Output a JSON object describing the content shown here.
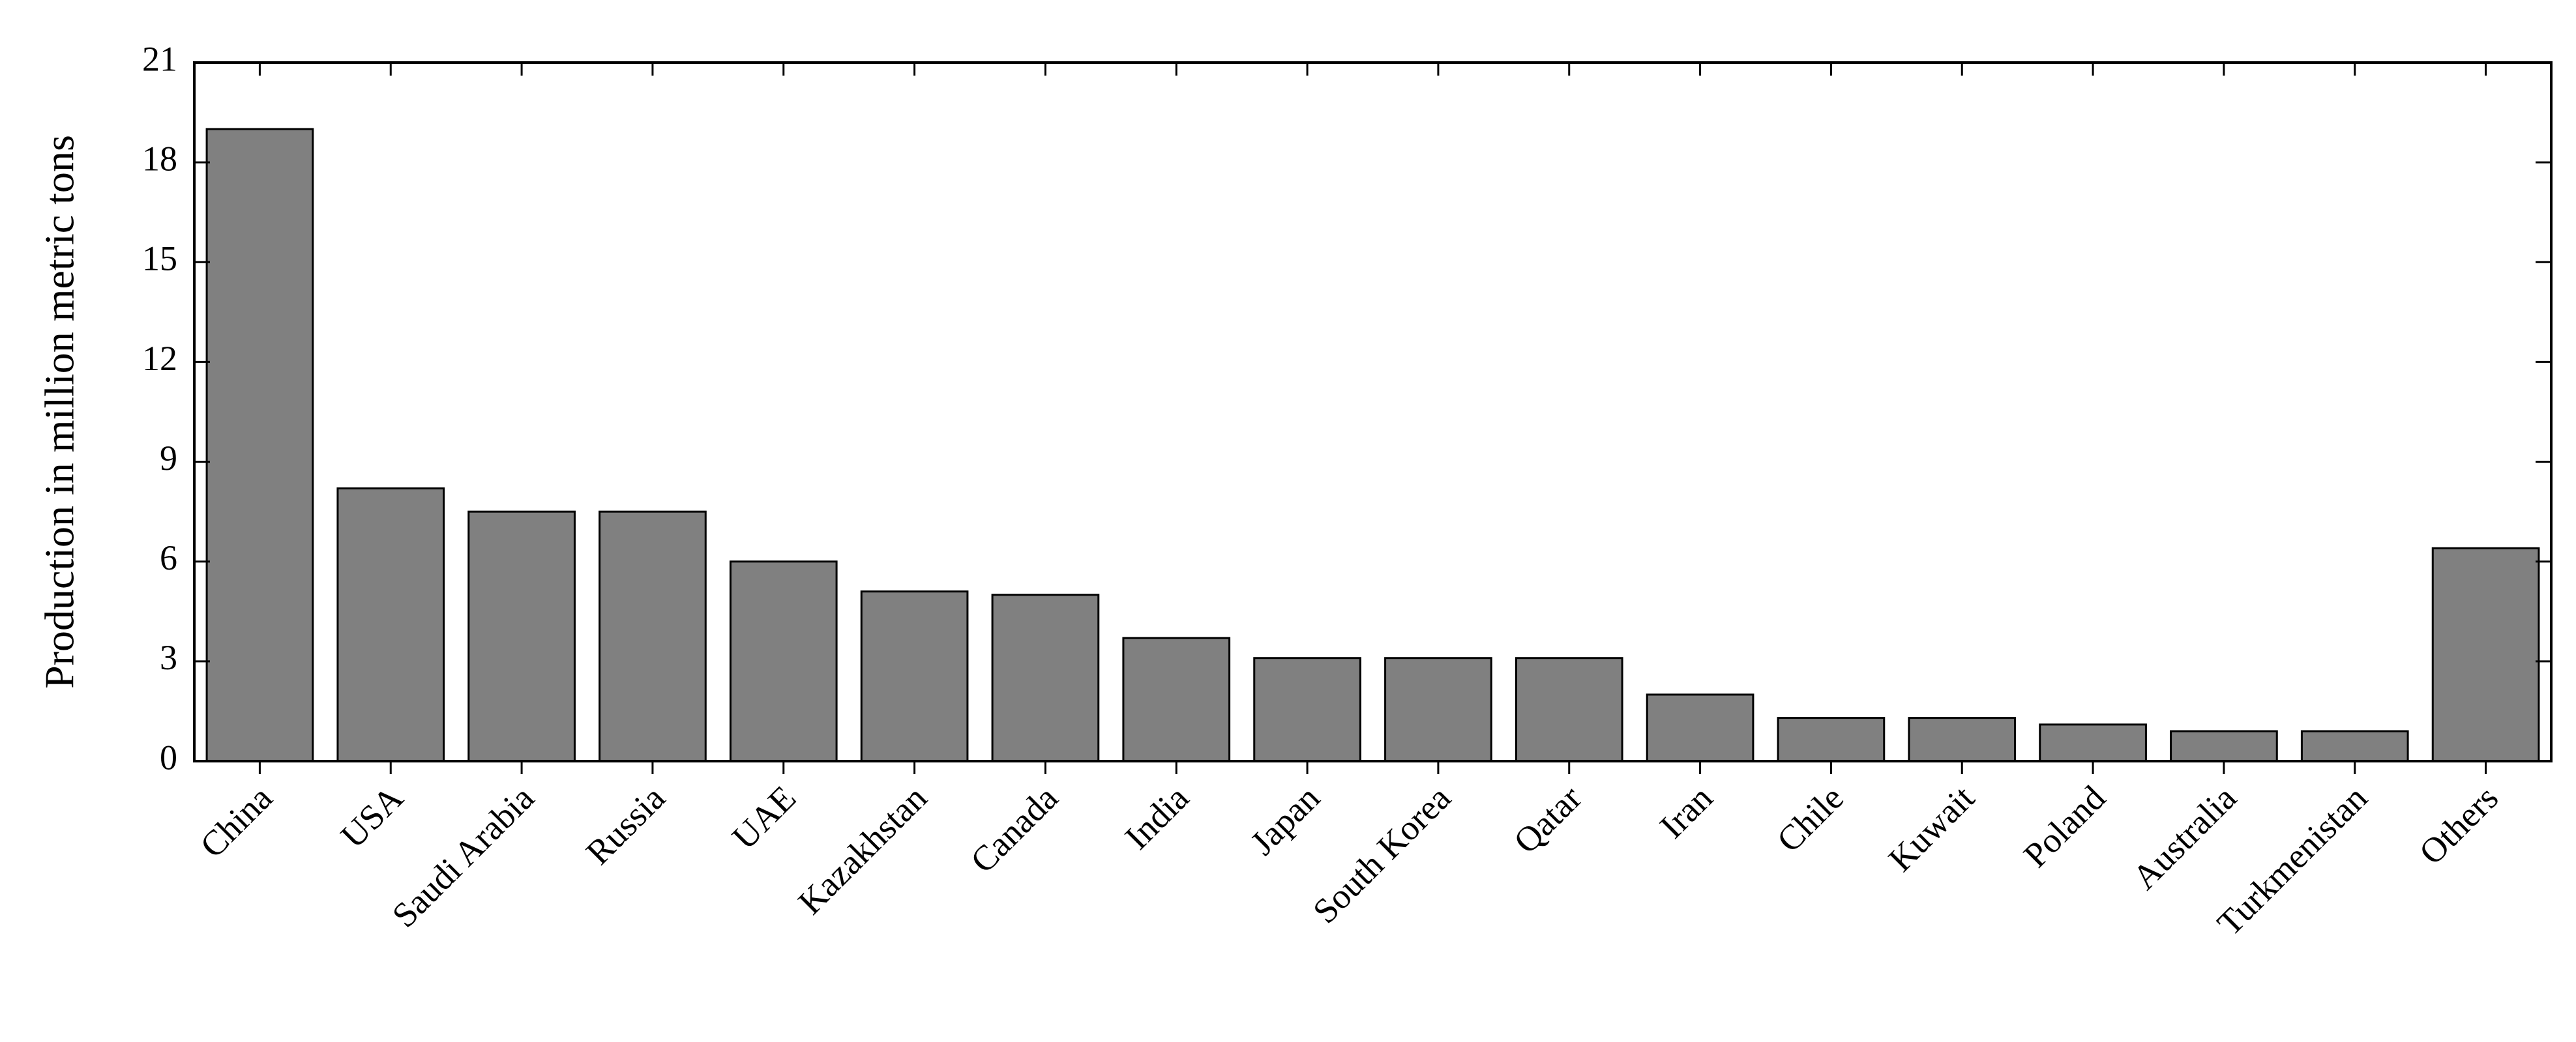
{
  "chart_data": {
    "type": "bar",
    "y_label": "Production in million metric tons",
    "categories": [
      "China",
      "USA",
      "Saudi Arabia",
      "Russia",
      "UAE",
      "Kazakhstan",
      "Canada",
      "India",
      "Japan",
      "South Korea",
      "Qatar",
      "Iran",
      "Chile",
      "Kuwait",
      "Poland",
      "Australia",
      "Turkmenistan",
      "Others"
    ],
    "values": [
      19,
      8.2,
      7.5,
      7.5,
      6,
      5.1,
      5,
      3.7,
      3.1,
      3.1,
      3.1,
      2,
      1.3,
      1.3,
      1.1,
      0.9,
      0.9,
      6.4
    ],
    "color": "#808080",
    "ylim": [
      0,
      21
    ],
    "yticks": [
      0,
      3,
      6,
      9,
      12,
      15,
      18,
      21
    ],
    "grid": false
  }
}
